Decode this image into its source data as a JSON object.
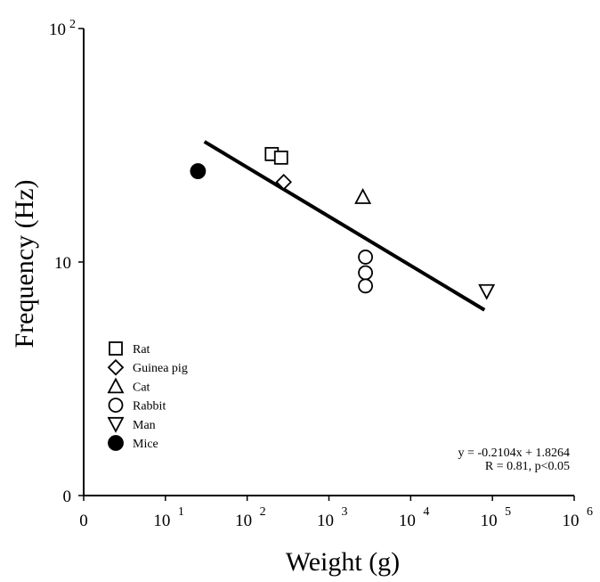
{
  "chart_data": {
    "type": "scatter",
    "xlabel": "Weight (g)",
    "ylabel": "Frequency (Hz)",
    "xscale": "log",
    "yscale": "log",
    "xlim": [
      1,
      1000000
    ],
    "ylim": [
      1,
      100
    ],
    "x_ticks": [
      {
        "value": 1,
        "base": "0",
        "exp": ""
      },
      {
        "value": 10,
        "base": "10",
        "exp": "1"
      },
      {
        "value": 100,
        "base": "10",
        "exp": "2"
      },
      {
        "value": 1000,
        "base": "10",
        "exp": "3"
      },
      {
        "value": 10000,
        "base": "10",
        "exp": "4"
      },
      {
        "value": 100000,
        "base": "10",
        "exp": "5"
      },
      {
        "value": 1000000,
        "base": "10",
        "exp": "6"
      }
    ],
    "y_ticks": [
      {
        "value": 1,
        "base": "0",
        "exp": ""
      },
      {
        "value": 10,
        "base": "10",
        "exp": ""
      },
      {
        "value": 100,
        "base": "10",
        "exp": "2"
      }
    ],
    "legend_position": "bottom-left",
    "series": [
      {
        "name": "Rat",
        "marker": "square-open",
        "points": [
          {
            "x": 200,
            "y": 29
          },
          {
            "x": 260,
            "y": 28
          }
        ]
      },
      {
        "name": "Guinea pig",
        "marker": "diamond-open",
        "points": [
          {
            "x": 280,
            "y": 22
          }
        ]
      },
      {
        "name": "Cat",
        "marker": "triangle-up-open",
        "points": [
          {
            "x": 2600,
            "y": 19
          }
        ]
      },
      {
        "name": "Rabbit",
        "marker": "circle-open",
        "points": [
          {
            "x": 2800,
            "y": 10.5
          },
          {
            "x": 2800,
            "y": 9
          },
          {
            "x": 2800,
            "y": 7.9
          }
        ]
      },
      {
        "name": "Man",
        "marker": "triangle-down-open",
        "points": [
          {
            "x": 85000,
            "y": 7.5
          }
        ]
      },
      {
        "name": "Mice",
        "marker": "circle-filled",
        "points": [
          {
            "x": 25,
            "y": 24.5
          }
        ]
      }
    ],
    "fit_line": {
      "x_start": 30,
      "x_end": 80000
    },
    "annotation": {
      "line1": "y = -0.2104x + 1.8264",
      "line2": "R = 0.81, p<0.05"
    }
  }
}
